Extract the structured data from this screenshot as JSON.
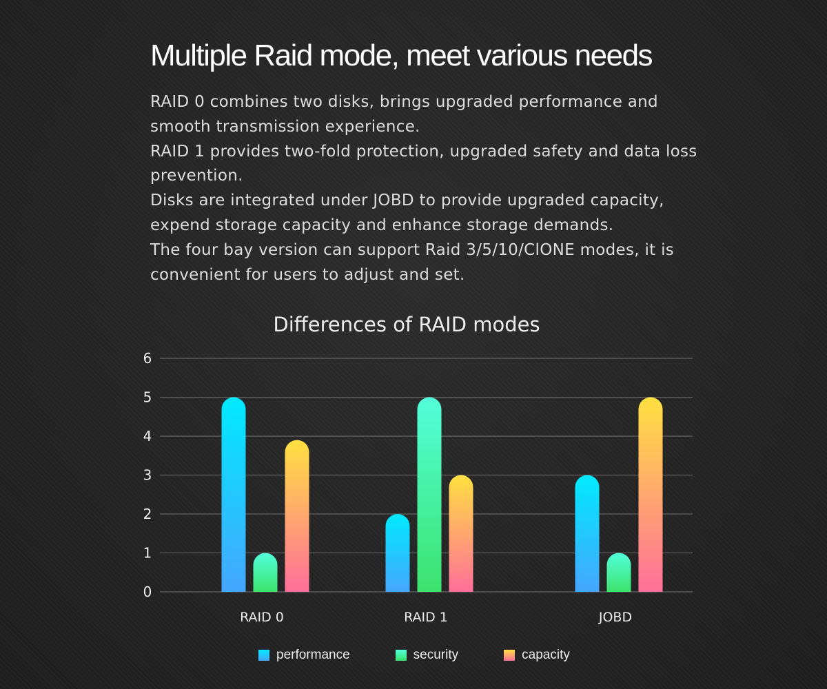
{
  "headline": "Multiple Raid mode, meet various needs",
  "intro": [
    "RAID 0 combines two disks, brings upgraded performance and smooth transmission experience.",
    "RAID 1 provides two-fold protection, upgraded safety and data loss prevention.",
    "Disks are integrated under JOBD to provide upgraded capacity, expend storage capacity and enhance storage demands.",
    "The four bay version can support Raid 3/5/10/ClONE modes, it is convenient for users to adjust and set."
  ],
  "chart_data": {
    "type": "bar",
    "title": "Differences of RAID modes",
    "categories": [
      "RAID 0",
      "RAID 1",
      "JOBD"
    ],
    "series": [
      {
        "name": "performance",
        "values": [
          5,
          2,
          3
        ],
        "gradient": [
          "#00eaff",
          "#45a6ff"
        ]
      },
      {
        "name": "security",
        "values": [
          1,
          5,
          1
        ],
        "gradient": [
          "#52ffdb",
          "#3ce26c"
        ]
      },
      {
        "name": "capacity",
        "values": [
          3.9,
          3,
          5
        ],
        "gradient": [
          "#ffe040",
          "#ff6f9a"
        ]
      }
    ],
    "ylim": [
      0,
      6
    ],
    "yticks": [
      0,
      1,
      2,
      3,
      4,
      5,
      6
    ],
    "grid": true,
    "legend_position": "bottom"
  }
}
